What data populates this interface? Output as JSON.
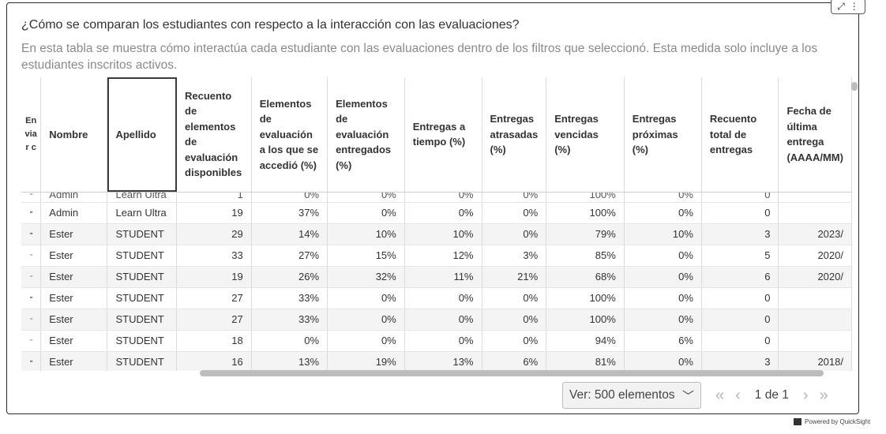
{
  "header": {
    "title": "¿Cómo se comparan los estudiantes con respecto a la interacción con las evaluaciones?",
    "subtitle": "En esta tabla se muestra cómo interactúa cada estudiante con las evaluaciones dentro de los filtros que seleccionó. Esta medida solo incluye a los estudiantes inscritos activos."
  },
  "corner": {
    "expand_icon": "⤢",
    "menu_icon": "⋮"
  },
  "table": {
    "columns": [
      "Enviar c",
      "Nombre",
      "Apellido",
      "Recuento de elementos de evaluación disponibles",
      "Elementos de evaluación a los que se accedió (%)",
      "Elementos de evaluación entregados (%)",
      "Entregas a tiempo (%)",
      "Entregas atrasadas (%)",
      "Entregas vencidas (%)",
      "Entregas próximas (%)",
      "Recuento total de entregas",
      "Fecha de última entrega (AAAA/MM)"
    ],
    "partial_row": [
      "▫▫",
      "Admin",
      "Learn Ultra",
      "1",
      "0%",
      "0%",
      "0%",
      "0%",
      "100%",
      "0%",
      "0",
      ""
    ],
    "rows": [
      [
        "▪▪",
        "Admin",
        "Learn Ultra",
        "19",
        "37%",
        "0%",
        "0%",
        "0%",
        "100%",
        "0%",
        "0",
        ""
      ],
      [
        "▪▪",
        "Ester",
        "STUDENT",
        "29",
        "14%",
        "10%",
        "10%",
        "0%",
        "79%",
        "10%",
        "3",
        "2023/"
      ],
      [
        "▫▫",
        "Ester",
        "STUDENT",
        "33",
        "27%",
        "15%",
        "12%",
        "3%",
        "85%",
        "0%",
        "5",
        "2020/"
      ],
      [
        "▫▫",
        "Ester",
        "STUDENT",
        "19",
        "26%",
        "32%",
        "11%",
        "21%",
        "68%",
        "0%",
        "6",
        "2020/"
      ],
      [
        "▪▪",
        "Ester",
        "STUDENT",
        "27",
        "33%",
        "0%",
        "0%",
        "0%",
        "100%",
        "0%",
        "0",
        ""
      ],
      [
        "▫▫",
        "Ester",
        "STUDENT",
        "27",
        "33%",
        "0%",
        "0%",
        "0%",
        "100%",
        "0%",
        "0",
        ""
      ],
      [
        "▫▫",
        "Ester",
        "STUDENT",
        "18",
        "0%",
        "0%",
        "0%",
        "0%",
        "94%",
        "6%",
        "0",
        ""
      ],
      [
        "▪▪",
        "Ester",
        "STUDENT",
        "16",
        "13%",
        "19%",
        "13%",
        "6%",
        "81%",
        "0%",
        "3",
        "2018/"
      ]
    ]
  },
  "pager": {
    "page_size": "Ver: 500 elementos",
    "current_page": "1",
    "of_label": "de",
    "total_pages": "1"
  },
  "footer": {
    "powered_by": "Powered by QuickSight"
  }
}
